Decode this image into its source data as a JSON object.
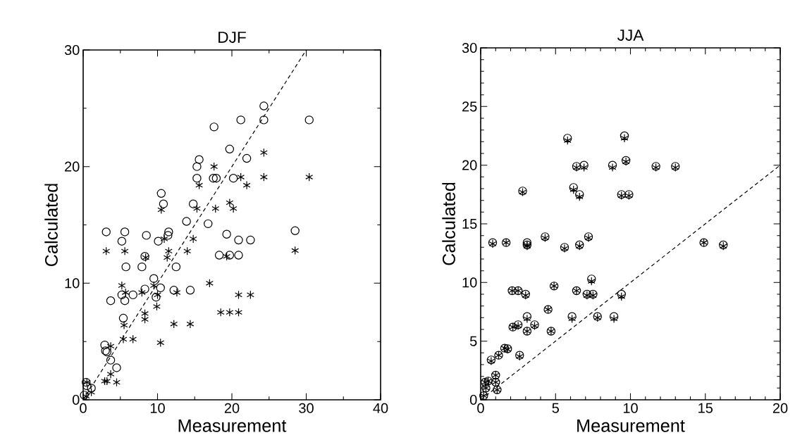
{
  "chart_data": [
    {
      "type": "scatter",
      "title": "DJF",
      "xlabel": "Measurement",
      "ylabel": "Calculated",
      "xlim": [
        0,
        40
      ],
      "ylim": [
        0,
        30
      ],
      "xticks": [
        0,
        10,
        20,
        30,
        40
      ],
      "yticks": [
        0,
        10,
        20,
        30
      ],
      "series": [
        {
          "marker": "circle",
          "color": "#000000",
          "x": [
            3.1,
            5.6,
            5.2,
            5.75,
            7.9,
            8.3,
            8.5,
            3.7,
            5.2,
            5.6,
            6.7,
            5.4,
            8.3,
            9.5,
            9.8,
            10.4,
            10.1,
            10.5,
            10.8,
            11.4,
            11.5,
            12.2,
            12.5,
            13.9,
            14.4,
            14.8,
            15.3,
            15.3,
            15.6,
            17.6,
            17.5,
            17.9,
            2.9,
            3.0,
            3.2,
            3.7,
            4.5,
            0.4,
            0.5,
            0.15,
            1.1,
            21.2,
            24.3,
            24.3,
            30.4,
            19.7,
            22.0,
            20.2,
            16.8,
            19.3,
            28.5,
            20.9,
            22.5,
            18.3,
            19.7,
            20.9
          ],
          "values": [
            14.4,
            14.4,
            13.6,
            11.4,
            11.4,
            12.3,
            14.1,
            8.5,
            9.0,
            8.5,
            9.0,
            7.0,
            9.5,
            10.4,
            8.8,
            9.6,
            13.6,
            17.7,
            16.8,
            14.1,
            14.4,
            9.4,
            11.4,
            15.3,
            9.4,
            16.8,
            19.0,
            20.0,
            20.6,
            23.4,
            19.0,
            19.0,
            4.7,
            4.2,
            4.1,
            3.4,
            2.75,
            1.5,
            1.2,
            0.4,
            1.0,
            24.0,
            25.2,
            24.0,
            24.0,
            21.5,
            20.7,
            19.0,
            15.1,
            14.2,
            14.5,
            13.7,
            13.7,
            12.4,
            12.4,
            12.4
          ]
        },
        {
          "marker": "cross",
          "color": "#000000",
          "x": [
            3.1,
            5.6,
            11.5,
            14.0,
            11.3,
            8.4,
            10.9,
            14.8,
            10.5,
            15.3,
            15.6,
            17.6,
            17.8,
            17.0,
            5.2,
            5.7,
            7.9,
            9.5,
            10.0,
            9.9,
            8.3,
            8.3,
            5.5,
            12.2,
            14.4,
            12.6,
            5.4,
            6.7,
            10.4,
            3.7,
            2.9,
            3.2,
            3.7,
            4.5,
            1.1,
            0.4,
            0.5,
            21.2,
            24.3,
            30.4,
            22.0,
            24.3,
            19.7,
            20.2,
            28.5,
            19.3,
            20.9,
            22.5,
            18.5,
            19.7,
            20.9
          ],
          "values": [
            12.75,
            12.75,
            12.75,
            12.75,
            12.2,
            12.2,
            13.8,
            13.8,
            16.3,
            16.4,
            18.4,
            20.0,
            16.4,
            10.0,
            9.8,
            9.2,
            9.2,
            9.8,
            9.0,
            8.0,
            7.4,
            6.9,
            6.4,
            6.5,
            6.5,
            9.2,
            5.2,
            5.2,
            4.9,
            4.6,
            1.6,
            1.6,
            2.2,
            1.5,
            0.65,
            0.3,
            1.5,
            19.1,
            19.1,
            19.1,
            18.4,
            21.2,
            16.9,
            16.4,
            12.8,
            12.3,
            9.0,
            9.0,
            7.5,
            7.5,
            7.5
          ]
        },
        {
          "type": "line",
          "marker": "none",
          "line_style": "dashed",
          "color": "#000000",
          "x": [
            0,
            30
          ],
          "values": [
            0,
            30
          ]
        }
      ]
    },
    {
      "type": "scatter",
      "title": "JJA",
      "xlabel": "Measurement",
      "ylabel": "Calculated",
      "xlim": [
        0,
        20
      ],
      "ylim": [
        0,
        30
      ],
      "xticks": [
        0,
        5,
        10,
        15,
        20
      ],
      "yticks": [
        0,
        5,
        10,
        15,
        20,
        25,
        30
      ],
      "series": [
        {
          "marker": "circle",
          "color": "#000000",
          "x": [
            5.8,
            9.6,
            6.4,
            6.9,
            8.8,
            9.7,
            2.8,
            6.2,
            6.6,
            9.4,
            9.9,
            0.8,
            1.7,
            3.1,
            3.1,
            4.3,
            5.6,
            6.6,
            7.2,
            7.4,
            4.9,
            2.1,
            2.5,
            3.0,
            6.4,
            7.1,
            7.5,
            9.4,
            3.1,
            4.5,
            6.1,
            7.8,
            8.9,
            2.15,
            2.5,
            3.6,
            3.1,
            4.7,
            1.6,
            1.8,
            1.2,
            2.6,
            0.7,
            1.0,
            1.0,
            1.1,
            0.5,
            0.3,
            0.35,
            0.2,
            11.7,
            13.0,
            14.9,
            16.2
          ],
          "values": [
            22.3,
            22.5,
            19.9,
            20.0,
            20.0,
            20.4,
            17.8,
            18.1,
            17.5,
            17.5,
            17.5,
            13.4,
            13.4,
            13.4,
            13.2,
            13.9,
            13.0,
            13.2,
            13.9,
            10.3,
            9.7,
            9.3,
            9.3,
            9.0,
            9.3,
            9.0,
            9.0,
            9.0,
            7.1,
            7.7,
            7.1,
            7.1,
            7.1,
            6.2,
            6.4,
            6.4,
            5.85,
            5.85,
            4.4,
            4.35,
            3.8,
            3.8,
            3.4,
            2.1,
            1.5,
            0.85,
            1.6,
            1.5,
            1.0,
            0.35,
            19.9,
            19.9,
            13.4,
            13.2
          ]
        },
        {
          "marker": "cross",
          "color": "#000000",
          "x": [
            5.8,
            9.6,
            6.4,
            6.9,
            8.8,
            9.7,
            2.8,
            6.2,
            6.6,
            9.4,
            9.9,
            0.8,
            1.7,
            3.1,
            3.1,
            4.3,
            5.6,
            6.6,
            7.2,
            7.4,
            4.9,
            2.1,
            2.5,
            3.0,
            6.4,
            7.1,
            7.5,
            9.4,
            3.1,
            4.5,
            6.1,
            7.8,
            8.9,
            2.15,
            2.5,
            3.6,
            3.1,
            4.7,
            1.6,
            1.8,
            1.2,
            2.6,
            0.7,
            1.0,
            1.0,
            1.1,
            0.5,
            0.3,
            0.35,
            0.2,
            11.7,
            13.0,
            14.9,
            16.2
          ],
          "values": [
            22.1,
            22.3,
            19.8,
            19.8,
            19.8,
            20.3,
            17.7,
            17.9,
            17.3,
            17.4,
            17.4,
            13.3,
            13.4,
            13.2,
            13.1,
            13.8,
            12.9,
            13.1,
            13.8,
            10.1,
            9.7,
            9.3,
            9.3,
            8.9,
            9.3,
            8.9,
            8.9,
            8.8,
            6.9,
            7.7,
            6.9,
            7.0,
            6.9,
            6.2,
            6.3,
            6.3,
            5.85,
            5.85,
            4.4,
            4.3,
            3.8,
            3.7,
            3.3,
            2.1,
            1.5,
            0.85,
            1.6,
            1.5,
            1.0,
            0.35,
            19.8,
            19.8,
            13.4,
            13.1
          ]
        },
        {
          "type": "line",
          "marker": "none",
          "line_style": "dashed",
          "color": "#000000",
          "x": [
            0,
            20
          ],
          "values": [
            0,
            20
          ]
        }
      ]
    }
  ]
}
